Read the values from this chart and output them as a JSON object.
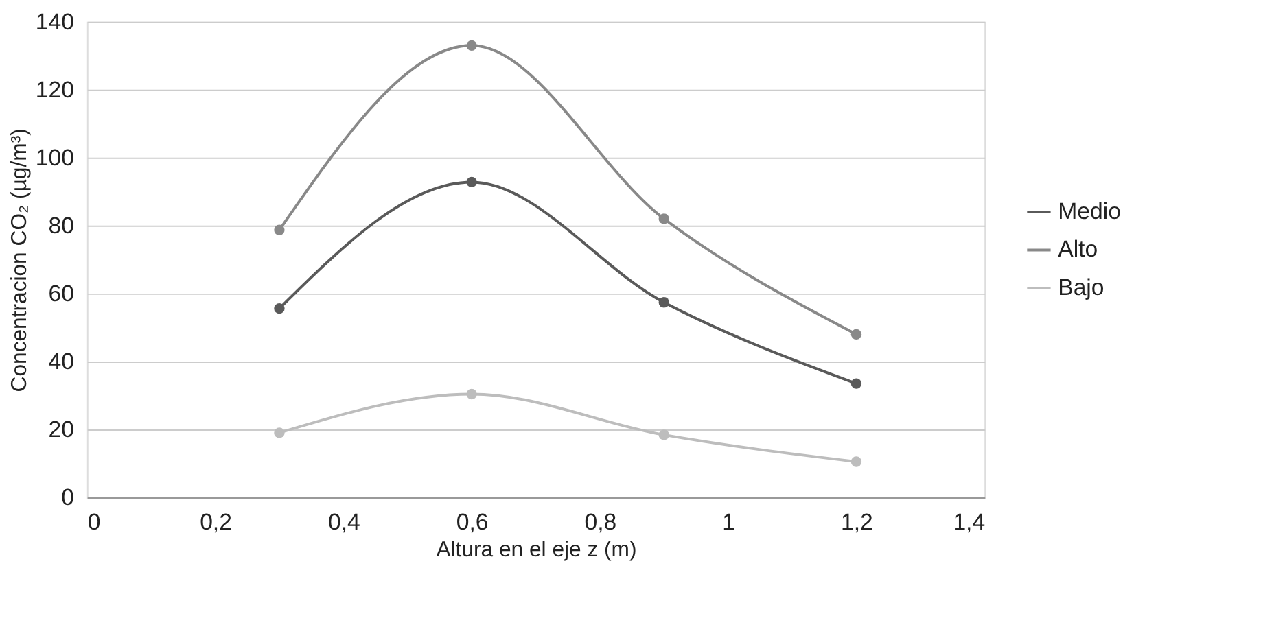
{
  "chart_data": {
    "type": "line",
    "xlabel": "Altura en el eje z (m)",
    "ylabel": "Concentracion CO₂ (µg/m³)",
    "x": [
      0.3,
      0.6,
      0.9,
      1.2
    ],
    "series": [
      {
        "name": "Medio",
        "color": "#5a5a5a",
        "values": [
          55.6,
          92.8,
          57.4,
          33.5
        ]
      },
      {
        "name": "Alto",
        "color": "#898989",
        "values": [
          78.7,
          133,
          82,
          48
        ]
      },
      {
        "name": "Bajo",
        "color": "#bdbdbd",
        "values": [
          19,
          30.4,
          18.4,
          10.5
        ]
      }
    ],
    "xlim": [
      0,
      1.4
    ],
    "xticks": [
      0,
      {
        "value": 0.2,
        "label": "0,2"
      },
      {
        "value": 0.4,
        "label": "0,4"
      },
      {
        "value": 0.6,
        "label": "0,6"
      },
      {
        "value": 0.8,
        "label": "0,8"
      },
      1,
      {
        "value": 1.2,
        "label": "1,2"
      },
      {
        "value": 1.4,
        "label": "1,4"
      }
    ],
    "ylim": [
      0,
      140
    ],
    "yticks": [
      0,
      20,
      40,
      60,
      80,
      100,
      120,
      140
    ],
    "grid": "y",
    "legend": "right",
    "marker": "circle",
    "line_style": "solid"
  }
}
